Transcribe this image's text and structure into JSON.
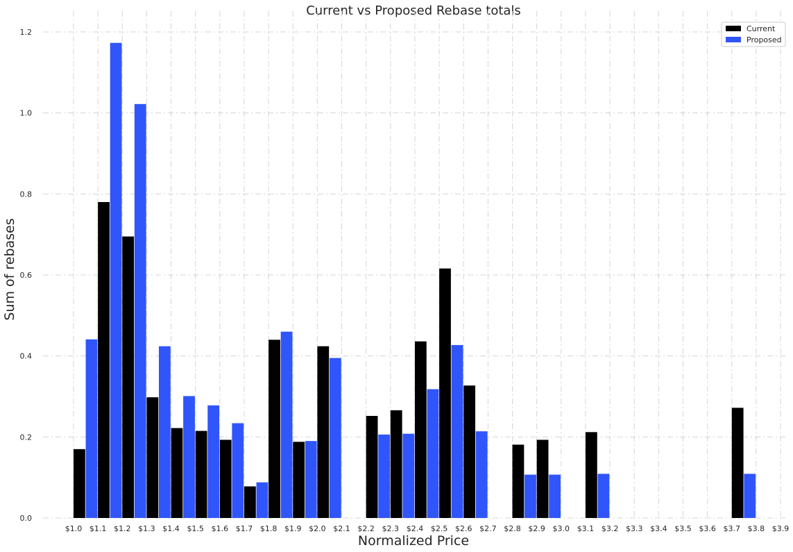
{
  "chart_data": {
    "type": "bar",
    "title": "Current vs Proposed Rebase totals",
    "xlabel": "Normalized Price",
    "ylabel": "Sum of rebases",
    "categories": [
      "$1.0",
      "$1.1",
      "$1.2",
      "$1.3",
      "$1.4",
      "$1.5",
      "$1.6",
      "$1.7",
      "$1.8",
      "$1.9",
      "$2.0",
      "$2.1",
      "$2.2",
      "$2.3",
      "$2.4",
      "$2.5",
      "$2.6",
      "$2.7",
      "$2.8",
      "$2.9",
      "$3.0",
      "$3.1",
      "$3.2",
      "$3.3",
      "$3.4",
      "$3.5",
      "$3.6",
      "$3.7",
      "$3.8",
      "$3.9"
    ],
    "series": [
      {
        "name": "Current",
        "color": "#000000",
        "values": [
          0.17,
          0.78,
          0.695,
          0.298,
          0.222,
          0.215,
          0.193,
          0.078,
          0.44,
          0.188,
          0.424,
          null,
          0.252,
          0.266,
          0.436,
          0.616,
          0.327,
          null,
          0.181,
          0.193,
          null,
          0.212,
          null,
          null,
          null,
          null,
          null,
          0.272,
          null,
          null
        ]
      },
      {
        "name": "Proposed",
        "color": "#2f55fb",
        "values": [
          0.441,
          1.173,
          1.022,
          0.424,
          0.301,
          0.278,
          0.234,
          0.088,
          0.46,
          0.19,
          0.395,
          null,
          0.206,
          0.208,
          0.318,
          0.427,
          0.214,
          null,
          0.107,
          0.107,
          null,
          0.109,
          null,
          null,
          null,
          null,
          null,
          0.109,
          null,
          null
        ]
      }
    ],
    "xtick_labels": [
      "$1.0",
      "$1.1",
      "$1.2",
      "$1.3",
      "$1.4",
      "$1.5",
      "$1.6",
      "$1.7",
      "$1.8",
      "$1.9",
      "$2.0",
      "$2.1",
      "$2.2",
      "$2.3",
      "$2.4",
      "$2.5",
      "$2.6",
      "$2.7",
      "$2.8",
      "$2.9",
      "$3.0",
      "$3.1",
      "$3.2",
      "$3.3",
      "$3.4",
      "$3.5",
      "$3.6",
      "$3.7",
      "$3.8",
      "$3.9"
    ],
    "ytick_labels": [
      "0.0",
      "0.2",
      "0.4",
      "0.6",
      "0.8",
      "1.0",
      "1.2"
    ],
    "yticks": [
      0,
      0.2,
      0.4,
      0.6,
      0.8,
      1.0,
      1.2
    ],
    "ylim": [
      0,
      1.2
    ],
    "grid": true,
    "legend_position": "top-right"
  }
}
